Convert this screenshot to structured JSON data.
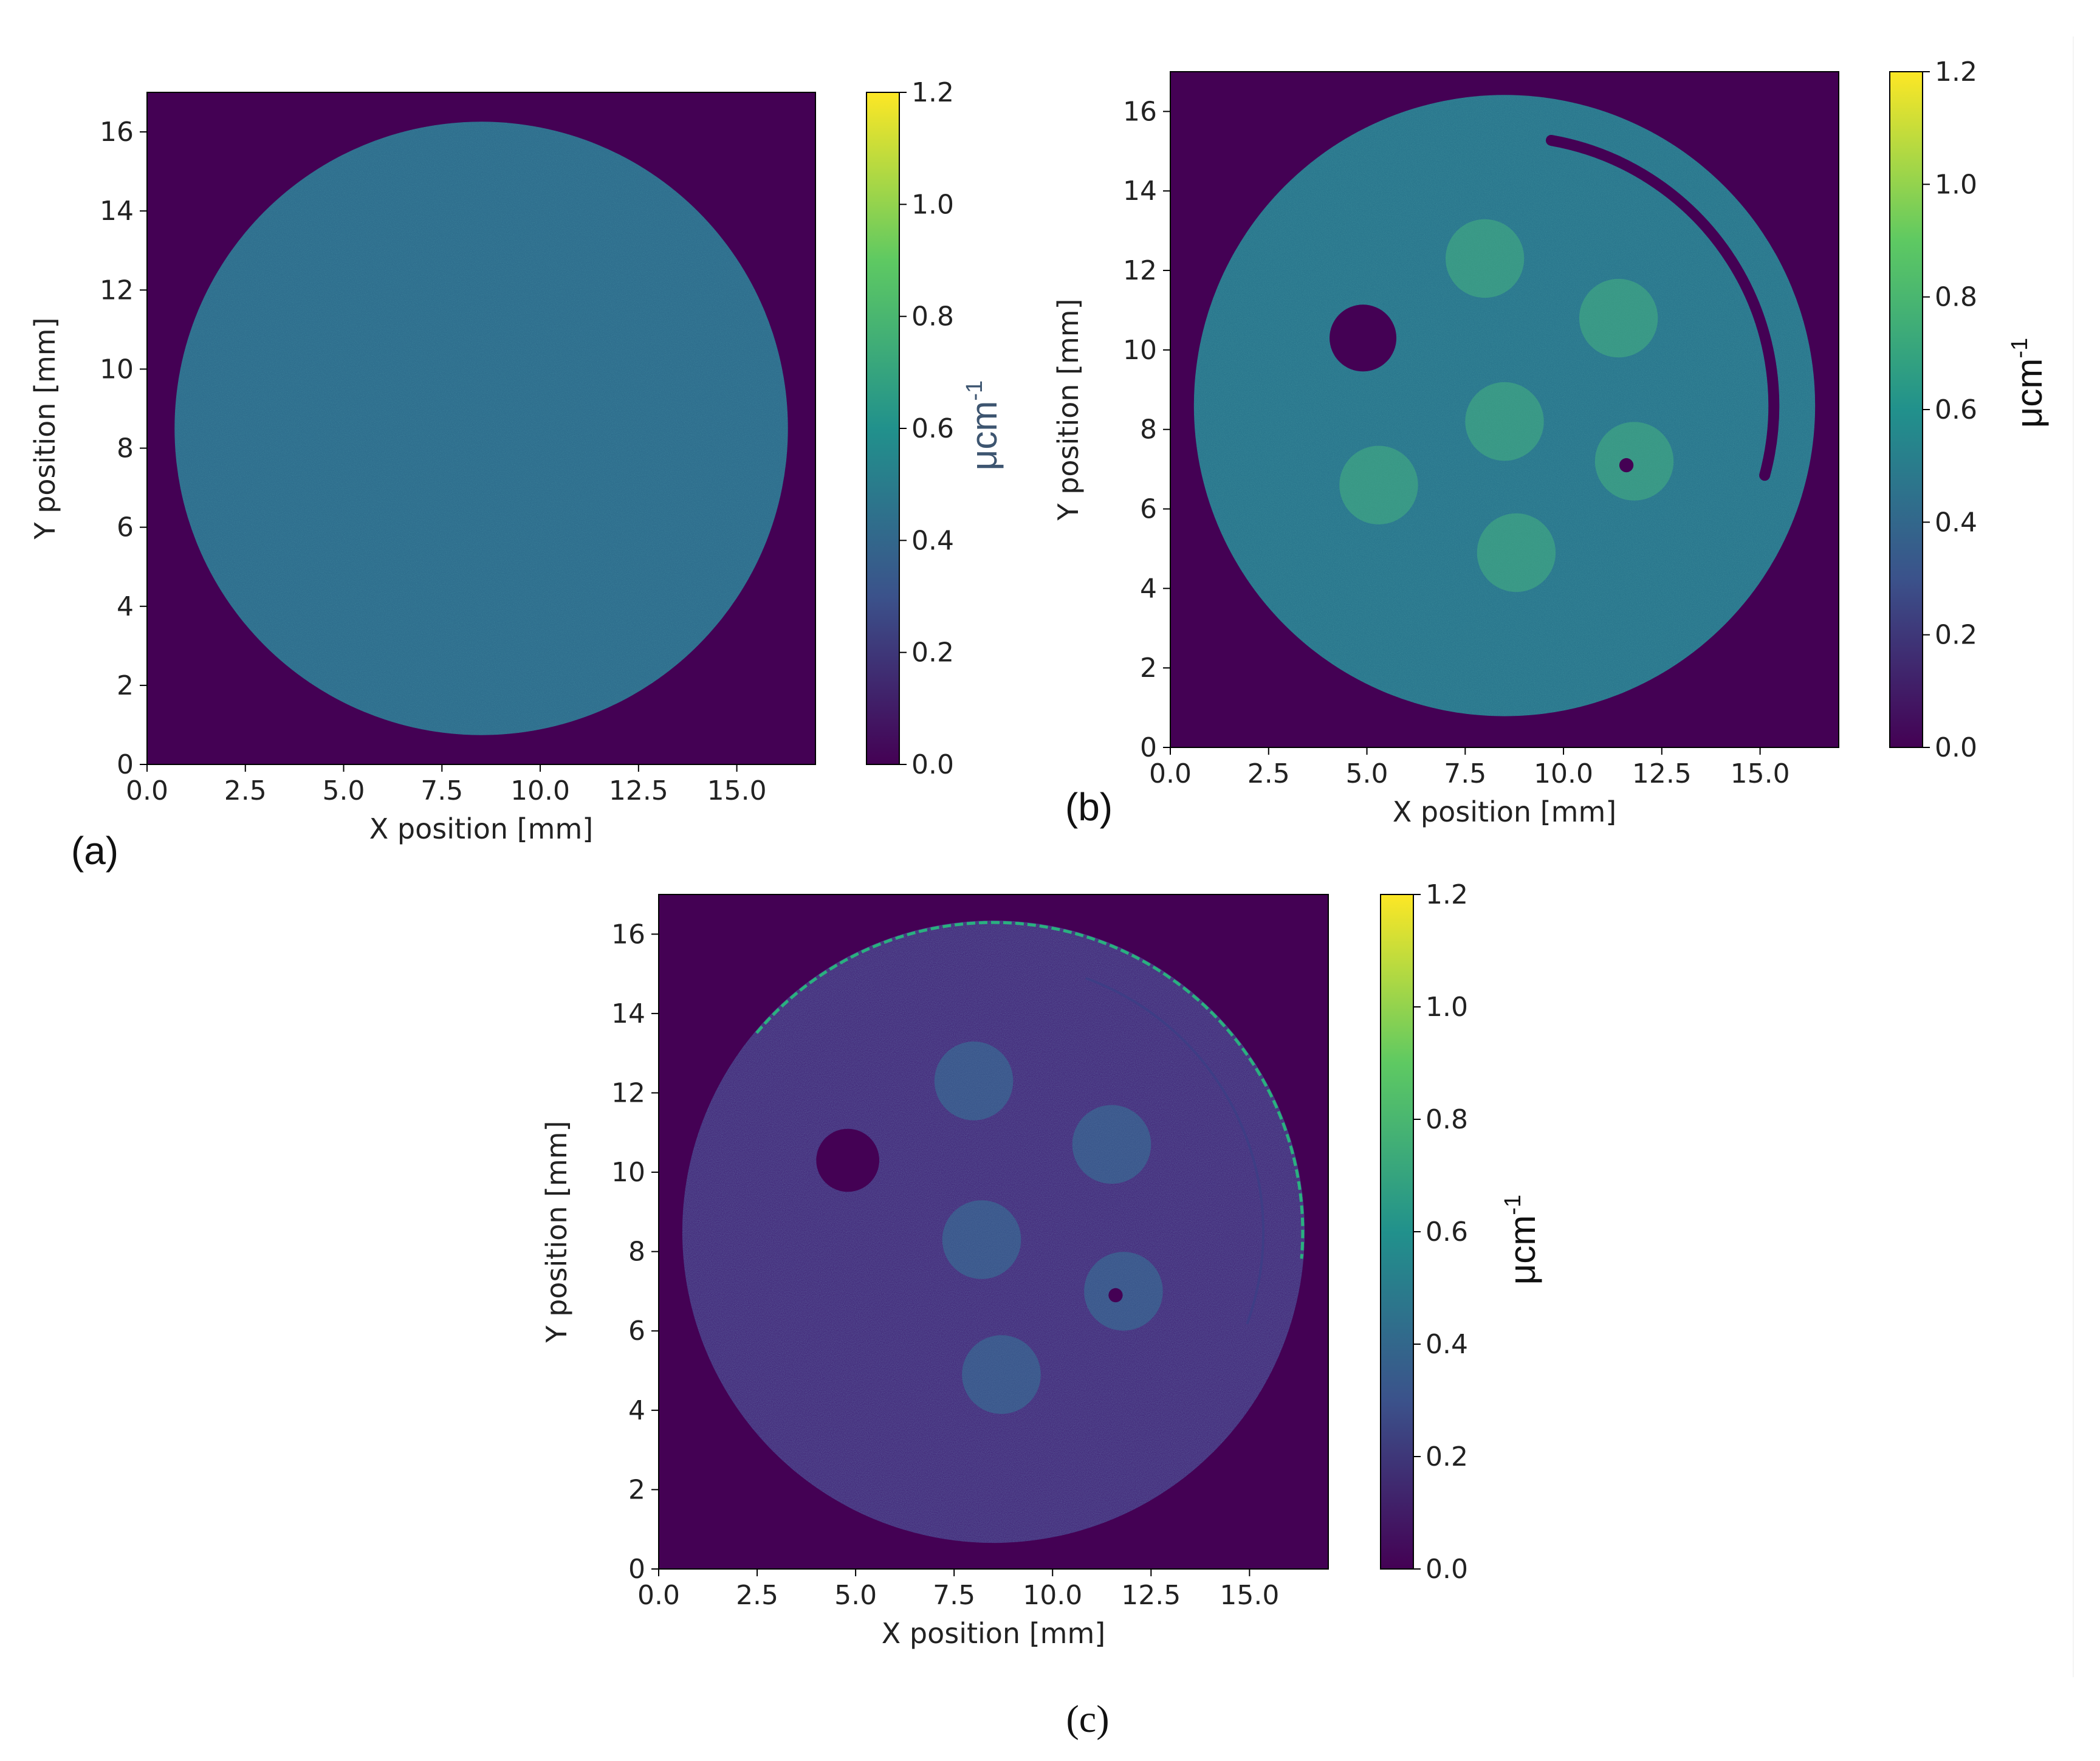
{
  "panels": [
    {
      "id": "a",
      "panel_label": "(a)",
      "colorbar_label": "μcm",
      "colorbar_exponent": "-1",
      "colorbar_ticks": [
        "0.0",
        "0.2",
        "0.4",
        "0.6",
        "0.8",
        "1.0",
        "1.2"
      ],
      "colormap": "viridis"
    },
    {
      "id": "b",
      "panel_label": "(b)",
      "colorbar_label": "μcm",
      "colorbar_exponent": "-1",
      "colorbar_ticks": [
        "0.0",
        "0.2",
        "0.4",
        "0.6",
        "0.8",
        "1.0",
        "1.2"
      ],
      "colormap": "viridis"
    },
    {
      "id": "c",
      "panel_label": "(c)",
      "colorbar_label": "μcm",
      "colorbar_exponent": "-1",
      "colorbar_ticks": [
        "0.0",
        "0.2",
        "0.4",
        "0.6",
        "0.8",
        "1.0",
        "1.2"
      ],
      "colormap": "viridis"
    }
  ],
  "colors": {
    "background": "#440154",
    "phantom_a": "#2f6f8e",
    "phantom_b": "#2b788e",
    "insert_b": "#3a9a85",
    "phantom_c": "#46307e",
    "insert_c": "#3a5a8c",
    "rim_c": "#2ab07f",
    "colorbar_stops": [
      "#440154",
      "#3b528b",
      "#21918c",
      "#5ec962",
      "#fde725"
    ]
  },
  "chart_data": [
    {
      "type": "heatmap",
      "title": "",
      "xlabel": "X position [mm]",
      "ylabel": "Y position [mm]",
      "xlim": [
        0,
        17
      ],
      "ylim": [
        0,
        17
      ],
      "xticks": [
        "0.0",
        "2.5",
        "5.0",
        "7.5",
        "10.0",
        "12.5",
        "15.0"
      ],
      "yticks": [
        "0",
        "2",
        "4",
        "6",
        "8",
        "10",
        "12",
        "14",
        "16"
      ],
      "colorbar_range": [
        0.0,
        1.2
      ],
      "background_value": 0.0,
      "phantom": {
        "center": [
          8.5,
          8.5
        ],
        "radius": 7.8,
        "value": 0.48
      },
      "inserts": []
    },
    {
      "type": "heatmap",
      "title": "",
      "xlabel": "X position [mm]",
      "ylabel": "Y position [mm]",
      "xlim": [
        0,
        17
      ],
      "ylim": [
        0,
        17
      ],
      "xticks": [
        "0.0",
        "2.5",
        "5.0",
        "7.5",
        "10.0",
        "12.5",
        "15.0"
      ],
      "yticks": [
        "0",
        "2",
        "4",
        "6",
        "8",
        "10",
        "12",
        "14",
        "16"
      ],
      "colorbar_range": [
        0.0,
        1.2
      ],
      "background_value": 0.0,
      "phantom": {
        "center": [
          8.5,
          8.6
        ],
        "radius": 7.9,
        "value": 0.52
      },
      "inserts": [
        {
          "center": [
            4.9,
            10.3
          ],
          "radius": 0.85,
          "value": 0.0
        },
        {
          "center": [
            8.0,
            12.3
          ],
          "radius": 1.0,
          "value": 0.68
        },
        {
          "center": [
            11.4,
            10.8
          ],
          "radius": 1.0,
          "value": 0.64
        },
        {
          "center": [
            8.5,
            8.2
          ],
          "radius": 1.0,
          "value": 0.66
        },
        {
          "center": [
            11.8,
            7.2
          ],
          "radius": 1.0,
          "value": 0.64
        },
        {
          "center": [
            5.3,
            6.6
          ],
          "radius": 1.0,
          "value": 0.56
        },
        {
          "center": [
            8.8,
            4.9
          ],
          "radius": 1.0,
          "value": 0.64
        }
      ]
    },
    {
      "type": "heatmap",
      "title": "",
      "xlabel": "X position [mm]",
      "ylabel": "Y position [mm]",
      "xlim": [
        0,
        17
      ],
      "ylim": [
        0,
        17
      ],
      "xticks": [
        "0.0",
        "2.5",
        "5.0",
        "7.5",
        "10.0",
        "12.5",
        "15.0"
      ],
      "yticks": [
        "0",
        "2",
        "4",
        "6",
        "8",
        "10",
        "12",
        "14",
        "16"
      ],
      "colorbar_range": [
        0.0,
        1.2
      ],
      "background_value": 0.0,
      "phantom": {
        "center": [
          8.5,
          8.5
        ],
        "radius": 7.9,
        "value": 0.1
      },
      "inserts": [
        {
          "center": [
            4.8,
            10.3
          ],
          "radius": 0.8,
          "value": 0.0
        },
        {
          "center": [
            8.0,
            12.3
          ],
          "radius": 1.0,
          "value": 0.26
        },
        {
          "center": [
            11.5,
            10.7
          ],
          "radius": 1.0,
          "value": 0.24
        },
        {
          "center": [
            8.2,
            8.3
          ],
          "radius": 1.0,
          "value": 0.26
        },
        {
          "center": [
            11.8,
            7.0
          ],
          "radius": 1.0,
          "value": 0.24
        },
        {
          "center": [
            8.7,
            4.9
          ],
          "radius": 1.0,
          "value": 0.24
        }
      ]
    }
  ]
}
